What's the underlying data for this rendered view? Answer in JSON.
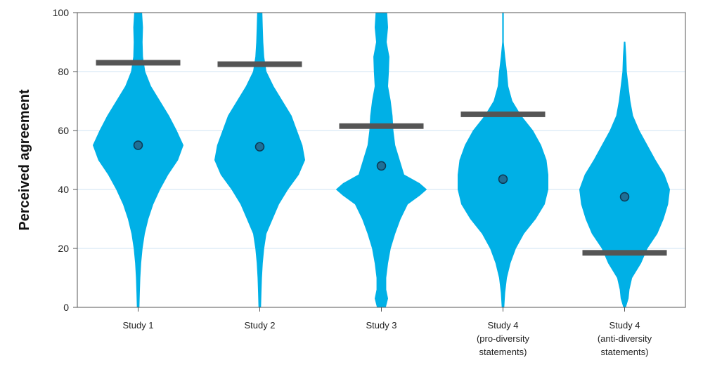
{
  "chart_data": {
    "type": "violin",
    "ylabel": "Perceived agreement",
    "xlabel": "",
    "ylim": [
      0,
      100
    ],
    "yticks": [
      0,
      20,
      40,
      60,
      80,
      100
    ],
    "grid": "horizontal",
    "colors": {
      "violin": "#00b0e6",
      "bar": "#555555",
      "mean_dot": "#1f6f96"
    },
    "categories": [
      [
        "Study 1"
      ],
      [
        "Study 2"
      ],
      [
        "Study 3"
      ],
      [
        "Study 4",
        "(pro-diversity",
        "statements)"
      ],
      [
        "Study 4",
        "(anti-diversity",
        "statements)"
      ]
    ],
    "means": [
      55,
      54.5,
      48,
      43.5,
      37.5
    ],
    "reference_bars": [
      83,
      82.5,
      61.5,
      65.5,
      18.5
    ],
    "densities": [
      [
        [
          0,
          0.02
        ],
        [
          5,
          0.03
        ],
        [
          10,
          0.04
        ],
        [
          15,
          0.06
        ],
        [
          20,
          0.09
        ],
        [
          25,
          0.14
        ],
        [
          30,
          0.22
        ],
        [
          35,
          0.33
        ],
        [
          40,
          0.48
        ],
        [
          45,
          0.66
        ],
        [
          50,
          0.88
        ],
        [
          55,
          1.0
        ],
        [
          60,
          0.85
        ],
        [
          65,
          0.68
        ],
        [
          70,
          0.48
        ],
        [
          75,
          0.28
        ],
        [
          80,
          0.15
        ],
        [
          85,
          0.1
        ],
        [
          90,
          0.09
        ],
        [
          95,
          0.1
        ],
        [
          100,
          0.08
        ]
      ],
      [
        [
          0,
          0.02
        ],
        [
          5,
          0.03
        ],
        [
          10,
          0.04
        ],
        [
          15,
          0.06
        ],
        [
          20,
          0.09
        ],
        [
          25,
          0.14
        ],
        [
          30,
          0.28
        ],
        [
          35,
          0.42
        ],
        [
          40,
          0.62
        ],
        [
          45,
          0.86
        ],
        [
          50,
          1.0
        ],
        [
          55,
          0.94
        ],
        [
          60,
          0.82
        ],
        [
          65,
          0.7
        ],
        [
          70,
          0.5
        ],
        [
          75,
          0.3
        ],
        [
          80,
          0.14
        ],
        [
          85,
          0.09
        ],
        [
          90,
          0.07
        ],
        [
          95,
          0.06
        ],
        [
          100,
          0.05
        ]
      ],
      [
        [
          0,
          0.09
        ],
        [
          3,
          0.14
        ],
        [
          6,
          0.1
        ],
        [
          10,
          0.1
        ],
        [
          15,
          0.14
        ],
        [
          20,
          0.2
        ],
        [
          25,
          0.3
        ],
        [
          30,
          0.42
        ],
        [
          35,
          0.58
        ],
        [
          38,
          0.85
        ],
        [
          40,
          1.0
        ],
        [
          42,
          0.85
        ],
        [
          45,
          0.5
        ],
        [
          50,
          0.4
        ],
        [
          55,
          0.3
        ],
        [
          60,
          0.26
        ],
        [
          65,
          0.24
        ],
        [
          70,
          0.2
        ],
        [
          75,
          0.14
        ],
        [
          80,
          0.16
        ],
        [
          85,
          0.17
        ],
        [
          90,
          0.11
        ],
        [
          95,
          0.14
        ],
        [
          100,
          0.12
        ]
      ],
      [
        [
          0,
          0.02
        ],
        [
          5,
          0.04
        ],
        [
          10,
          0.08
        ],
        [
          15,
          0.16
        ],
        [
          20,
          0.28
        ],
        [
          25,
          0.46
        ],
        [
          30,
          0.72
        ],
        [
          35,
          0.92
        ],
        [
          40,
          1.0
        ],
        [
          45,
          1.0
        ],
        [
          50,
          0.96
        ],
        [
          55,
          0.84
        ],
        [
          60,
          0.66
        ],
        [
          65,
          0.4
        ],
        [
          70,
          0.2
        ],
        [
          75,
          0.11
        ],
        [
          80,
          0.08
        ],
        [
          85,
          0.04
        ],
        [
          90,
          0.01
        ],
        [
          95,
          0.01
        ],
        [
          100,
          0.01
        ]
      ],
      [
        [
          0,
          0.02
        ],
        [
          3,
          0.08
        ],
        [
          6,
          0.1
        ],
        [
          10,
          0.16
        ],
        [
          15,
          0.36
        ],
        [
          20,
          0.5
        ],
        [
          25,
          0.72
        ],
        [
          30,
          0.86
        ],
        [
          35,
          0.96
        ],
        [
          40,
          1.0
        ],
        [
          45,
          0.88
        ],
        [
          50,
          0.68
        ],
        [
          55,
          0.5
        ],
        [
          60,
          0.32
        ],
        [
          65,
          0.18
        ],
        [
          70,
          0.12
        ],
        [
          75,
          0.08
        ],
        [
          80,
          0.04
        ],
        [
          85,
          0.03
        ],
        [
          90,
          0.01
        ]
      ]
    ]
  }
}
